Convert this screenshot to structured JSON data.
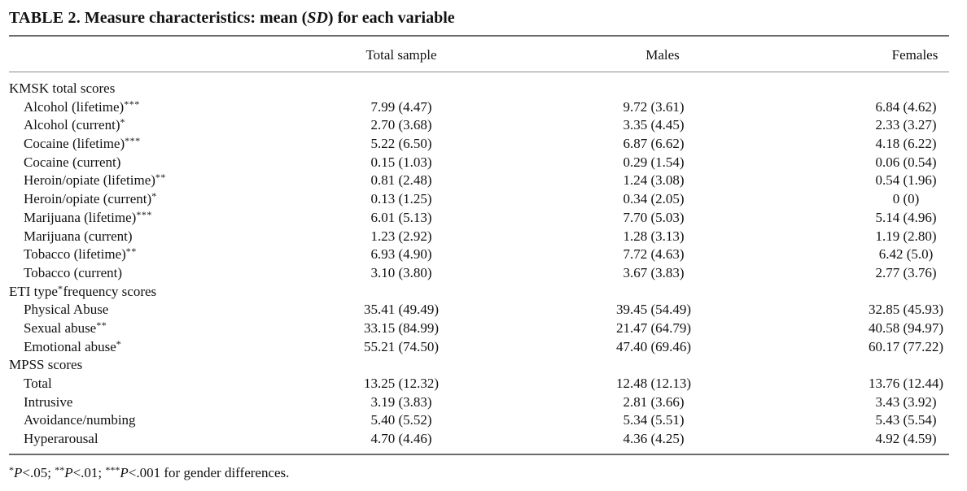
{
  "caption": {
    "label": "TABLE 2.",
    "title_pre": "Measure characteristics: mean (",
    "title_italic": "SD",
    "title_post": ") for each variable"
  },
  "columns": [
    "Total sample",
    "Males",
    "Females"
  ],
  "rows": [
    {
      "type": "section",
      "label": "KMSK total scores",
      "sig": ""
    },
    {
      "type": "item",
      "label": "Alcohol (lifetime)",
      "sig": "***",
      "values": [
        "7.99 (4.47)",
        "9.72 (3.61)",
        "6.84 (4.62)"
      ]
    },
    {
      "type": "item",
      "label": "Alcohol (current)",
      "sig": "*",
      "values": [
        "2.70 (3.68)",
        "3.35 (4.45)",
        "2.33 (3.27)"
      ]
    },
    {
      "type": "item",
      "label": "Cocaine (lifetime)",
      "sig": "***",
      "values": [
        "5.22 (6.50)",
        "6.87 (6.62)",
        "4.18 (6.22)"
      ]
    },
    {
      "type": "item",
      "label": "Cocaine (current)",
      "sig": "",
      "values": [
        "0.15 (1.03)",
        "0.29 (1.54)",
        "0.06 (0.54)"
      ]
    },
    {
      "type": "item",
      "label": "Heroin/opiate (lifetime)",
      "sig": "**",
      "values": [
        "0.81 (2.48)",
        "1.24 (3.08)",
        "0.54 (1.96)"
      ]
    },
    {
      "type": "item",
      "label": "Heroin/opiate (current)",
      "sig": "*",
      "values": [
        "0.13 (1.25)",
        "0.34 (2.05)",
        "0 (0)"
      ]
    },
    {
      "type": "item",
      "label": "Marijuana (lifetime)",
      "sig": "***",
      "values": [
        "6.01 (5.13)",
        "7.70 (5.03)",
        "5.14 (4.96)"
      ]
    },
    {
      "type": "item",
      "label": "Marijuana (current)",
      "sig": "",
      "values": [
        "1.23 (2.92)",
        "1.28 (3.13)",
        "1.19 (2.80)"
      ]
    },
    {
      "type": "item",
      "label": "Tobacco (lifetime)",
      "sig": "**",
      "values": [
        "6.93 (4.90)",
        "7.72 (4.63)",
        "6.42 (5.0)"
      ]
    },
    {
      "type": "item",
      "label": "Tobacco (current)",
      "sig": "",
      "values": [
        "3.10 (3.80)",
        "3.67 (3.83)",
        "2.77 (3.76)"
      ]
    },
    {
      "type": "section",
      "label": "ETI type",
      "sig": "*",
      "label_post": "frequency scores"
    },
    {
      "type": "item",
      "label": "Physical Abuse",
      "sig": "",
      "values": [
        "35.41 (49.49)",
        "39.45 (54.49)",
        "32.85 (45.93)"
      ]
    },
    {
      "type": "item",
      "label": "Sexual abuse",
      "sig": "**",
      "values": [
        "33.15 (84.99)",
        "21.47 (64.79)",
        "40.58 (94.97)"
      ]
    },
    {
      "type": "item",
      "label": "Emotional abuse",
      "sig": "*",
      "values": [
        "55.21 (74.50)",
        "47.40 (69.46)",
        "60.17 (77.22)"
      ]
    },
    {
      "type": "section",
      "label": "MPSS scores",
      "sig": ""
    },
    {
      "type": "item",
      "label": "Total",
      "sig": "",
      "values": [
        "13.25 (12.32)",
        "12.48 (12.13)",
        "13.76 (12.44)"
      ]
    },
    {
      "type": "item",
      "label": "Intrusive",
      "sig": "",
      "values": [
        "3.19 (3.83)",
        "2.81 (3.66)",
        "3.43 (3.92)"
      ]
    },
    {
      "type": "item",
      "label": "Avoidance/numbing",
      "sig": "",
      "values": [
        "5.40 (5.52)",
        "5.34 (5.51)",
        "5.43 (5.54)"
      ]
    },
    {
      "type": "item",
      "label": "Hyperarousal",
      "sig": "",
      "values": [
        "4.70 (4.46)",
        "4.36 (4.25)",
        "4.92 (4.59)"
      ]
    }
  ],
  "footnote": {
    "parts": [
      {
        "sup": "*",
        "p": "P",
        "rest": "<.05; "
      },
      {
        "sup": "**",
        "p": "P",
        "rest": "<.01; "
      },
      {
        "sup": "***",
        "p": "P",
        "rest": "<.001 for gender differences."
      }
    ]
  }
}
